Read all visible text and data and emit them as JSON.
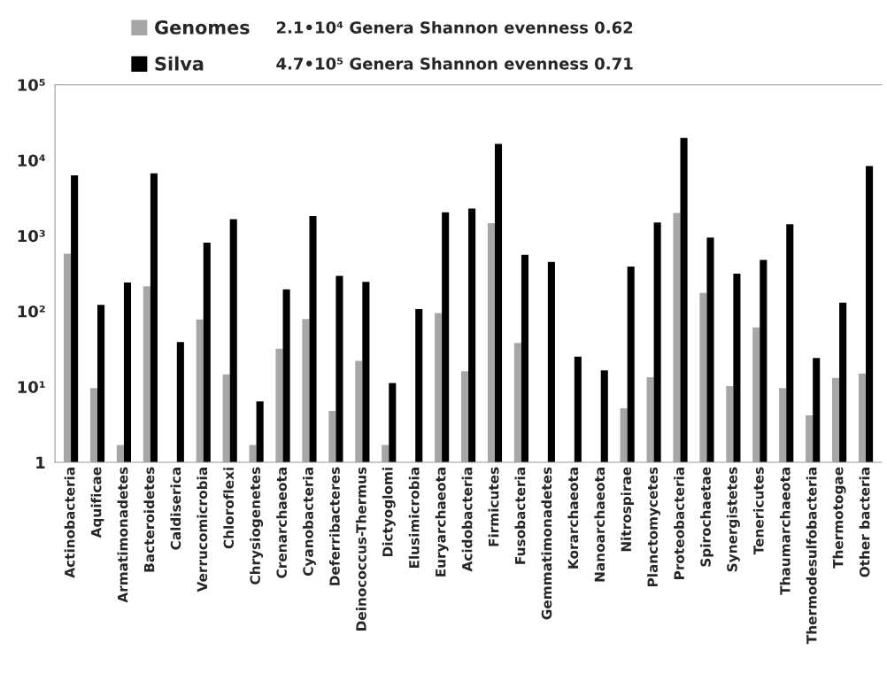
{
  "chart_data": {
    "type": "bar",
    "categories": [
      "Actinobacteria",
      "Aquificae",
      "Armatimonadetes",
      "Bacteroidetes",
      "Caldiserica",
      "Verrucomicrobia",
      "Chloroflexi",
      "Chrysiogenetes",
      "Crenarchaeota",
      "Cyanobacteria",
      "Deferribacteres",
      "Deinococcus-Thermus",
      "Dictyoglomi",
      "Elusimicrobia",
      "Euryarchaeota",
      "Acidobacteria",
      "Firmicutes",
      "Fusobacteria",
      "Gemmatimonadetes",
      "Korarchaeota",
      "Nanoarchaeota",
      "Nitrospirae",
      "Planctomycetes",
      "Proteobacteria",
      "Spirochaetae",
      "Synergistetes",
      "Tenericutes",
      "Thaumarchaeota",
      "Thermodesulfobacteria",
      "Thermotogae",
      "Other bacteria"
    ],
    "series": [
      {
        "name": "Genomes",
        "color": "#a6a6a6",
        "values": [
          580,
          9.6,
          1.7,
          215,
          null,
          78,
          14.6,
          1.7,
          32,
          79,
          4.8,
          22,
          1.7,
          null,
          95,
          16,
          1470,
          38,
          null,
          null,
          null,
          5.2,
          13.4,
          2000,
          175,
          10.2,
          61,
          9.6,
          4.2,
          13.1,
          15
        ]
      },
      {
        "name": "Silva",
        "color": "#000000",
        "values": [
          6300,
          122,
          240,
          6700,
          39,
          810,
          1660,
          6.4,
          195,
          1820,
          295,
          245,
          11.2,
          107,
          2050,
          2300,
          16500,
          560,
          450,
          25,
          16.5,
          390,
          1500,
          19800,
          950,
          315,
          480,
          1420,
          24,
          130,
          8400
        ]
      }
    ],
    "log": "y",
    "ylim": [
      1,
      100000
    ],
    "yticks": [
      1,
      {
        "value": 10,
        "label": "10¹"
      },
      {
        "value": 100,
        "label": "10²"
      },
      {
        "value": 1000,
        "label": "10³"
      },
      {
        "value": 10000,
        "label": "10⁴"
      },
      {
        "value": 100000,
        "label": "10⁵"
      }
    ],
    "legend": "top left",
    "annotations": [
      "2.1•10⁴ Genera Shannon evenness 0.62",
      "4.7•10⁵ Genera Shannon evenness 0.71"
    ]
  }
}
